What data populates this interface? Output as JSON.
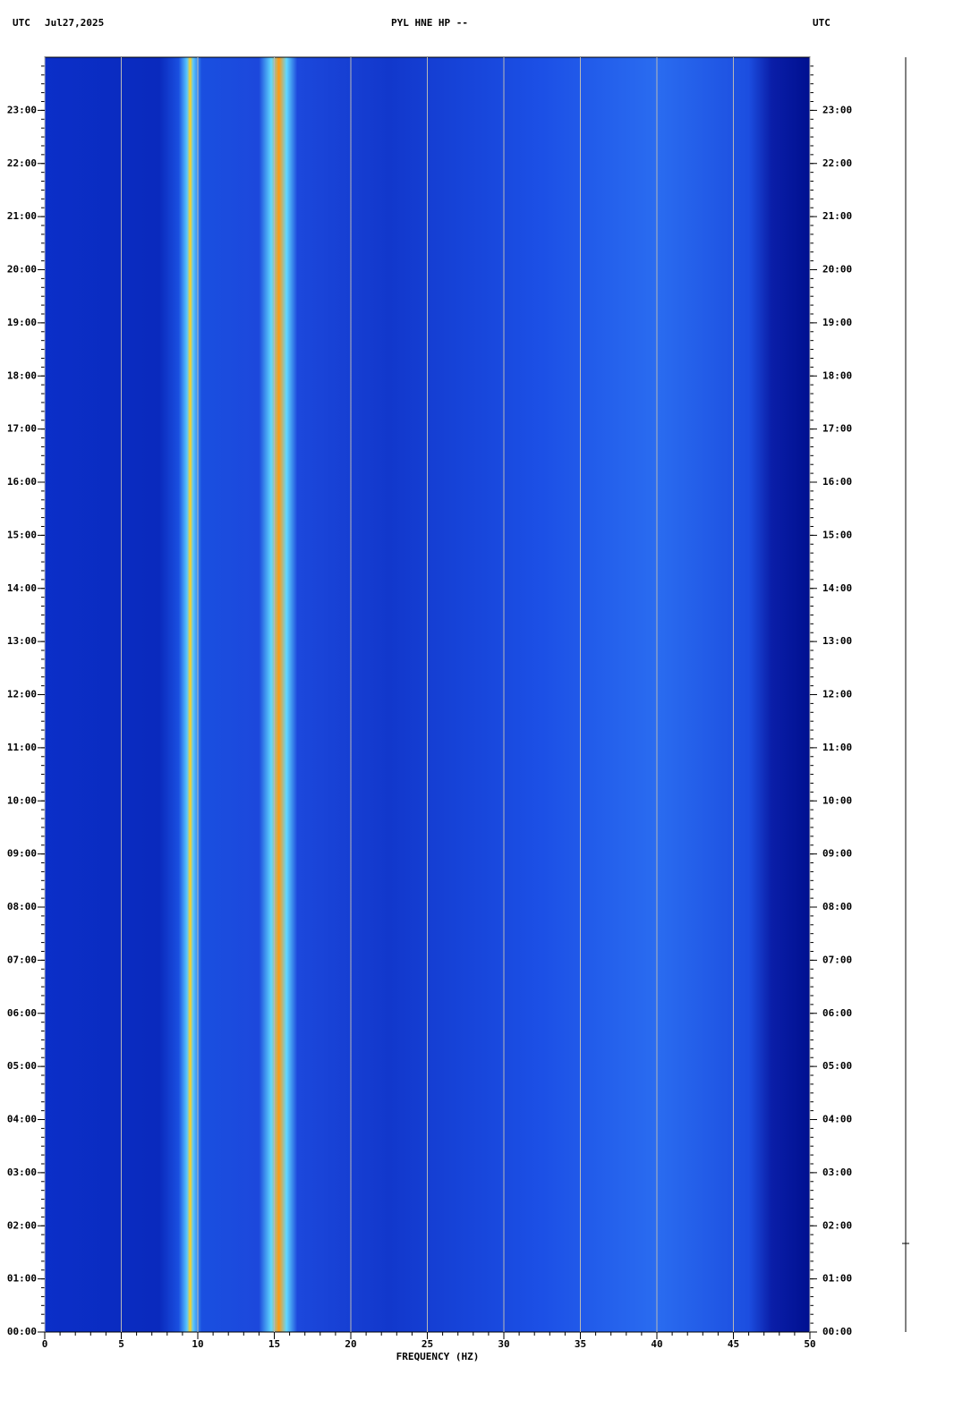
{
  "chart_data": {
    "type": "spectrogram",
    "title": "PYL HNE HP --",
    "time_zone": "UTC",
    "date": "Jul27,2025",
    "xlabel": "FREQUENCY (HZ)",
    "xlim": [
      0,
      50
    ],
    "xticks": [
      0,
      5,
      10,
      15,
      20,
      25,
      30,
      35,
      40,
      45,
      50
    ],
    "grid": true,
    "ylim": [
      0,
      24
    ],
    "yticks": [
      {
        "value": 0,
        "label": "00:00"
      },
      {
        "value": 1,
        "label": "01:00"
      },
      {
        "value": 2,
        "label": "02:00"
      },
      {
        "value": 3,
        "label": "03:00"
      },
      {
        "value": 4,
        "label": "04:00"
      },
      {
        "value": 5,
        "label": "05:00"
      },
      {
        "value": 6,
        "label": "06:00"
      },
      {
        "value": 7,
        "label": "07:00"
      },
      {
        "value": 8,
        "label": "08:00"
      },
      {
        "value": 9,
        "label": "09:00"
      },
      {
        "value": 10,
        "label": "10:00"
      },
      {
        "value": 11,
        "label": "11:00"
      },
      {
        "value": 12,
        "label": "12:00"
      },
      {
        "value": 13,
        "label": "13:00"
      },
      {
        "value": 14,
        "label": "14:00"
      },
      {
        "value": 15,
        "label": "15:00"
      },
      {
        "value": 16,
        "label": "16:00"
      },
      {
        "value": 17,
        "label": "17:00"
      },
      {
        "value": 18,
        "label": "18:00"
      },
      {
        "value": 19,
        "label": "19:00"
      },
      {
        "value": 20,
        "label": "20:00"
      },
      {
        "value": 21,
        "label": "21:00"
      },
      {
        "value": 22,
        "label": "22:00"
      },
      {
        "value": 23,
        "label": "23:00"
      }
    ]
  }
}
